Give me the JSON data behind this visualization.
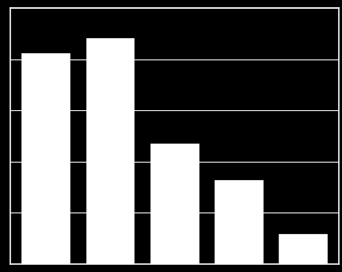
{
  "categories": [
    "",
    "",
    "",
    "",
    ""
  ],
  "values": [
    70,
    75,
    40,
    28,
    10
  ],
  "bar_color": "#ffffff",
  "background_color": "#000000",
  "grid_color": "#ffffff",
  "axis_color": "#ffffff",
  "ylim": [
    0,
    85
  ],
  "yticks": [
    0,
    17,
    34,
    51,
    68,
    85
  ],
  "bar_width": 0.75,
  "figsize": [
    4.32,
    3.43
  ],
  "dpi": 100
}
